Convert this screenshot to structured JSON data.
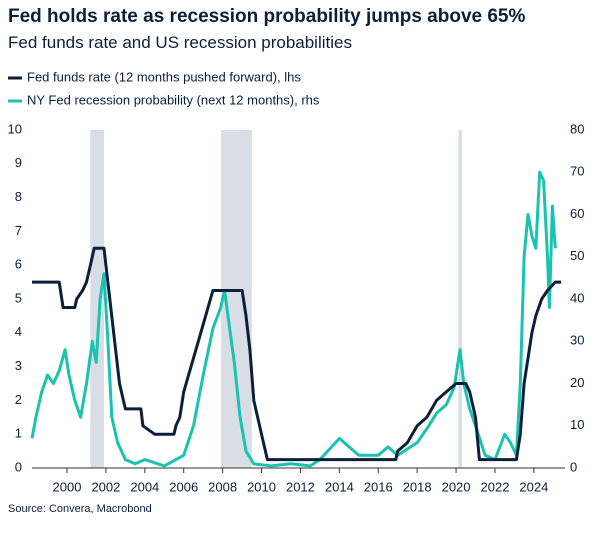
{
  "chart_data": {
    "type": "line",
    "title": "Fed holds rate as recession probability jumps above 65%",
    "subtitle": "Fed funds rate and US recession probabilities",
    "source": "Source: Convera, Macrobond",
    "xlim": [
      1998.2,
      2025.6
    ],
    "xticks": [
      2000,
      2002,
      2004,
      2006,
      2008,
      2010,
      2012,
      2014,
      2016,
      2018,
      2020,
      2022,
      2024
    ],
    "ylim": [
      0,
      10
    ],
    "yticks": [
      0,
      1,
      2,
      3,
      4,
      5,
      6,
      7,
      8,
      9,
      10
    ],
    "y2lim": [
      0,
      80
    ],
    "y2ticks": [
      0,
      10,
      20,
      30,
      40,
      50,
      60,
      70,
      80
    ],
    "recessions": [
      [
        2001.2,
        2001.9
      ],
      [
        2007.92,
        2009.5
      ],
      [
        2020.12,
        2020.3
      ]
    ],
    "series": [
      {
        "name": "Fed funds rate (12 months pushed forward), lhs",
        "color": "#0b1f3a",
        "x": [
          1998.2,
          1999.6,
          1999.8,
          2000.4,
          2000.5,
          2000.8,
          2001.0,
          2001.2,
          2001.4,
          2001.9,
          2002.0,
          2002.2,
          2002.5,
          2002.7,
          2002.9,
          2003.0,
          2003.8,
          2003.9,
          2004.5,
          2005.5,
          2005.6,
          2005.8,
          2006.0,
          2006.5,
          2007.0,
          2007.5,
          2009.0,
          2009.2,
          2009.4,
          2009.6,
          2010.0,
          2010.3,
          2016.9,
          2017.0,
          2017.5,
          2018.0,
          2018.5,
          2019.0,
          2019.5,
          2020.0,
          2020.5,
          2020.7,
          2020.9,
          2021.0,
          2021.2,
          2023.1,
          2023.3,
          2023.5,
          2023.7,
          2023.9,
          2024.1,
          2024.4,
          2024.7,
          2025.1,
          2025.4
        ],
        "values": [
          5.5,
          5.5,
          4.75,
          4.75,
          5.0,
          5.25,
          5.5,
          6.0,
          6.5,
          6.5,
          6.0,
          5.0,
          3.5,
          2.5,
          2.0,
          1.75,
          1.75,
          1.25,
          1.0,
          1.0,
          1.25,
          1.5,
          2.25,
          3.25,
          4.25,
          5.25,
          5.25,
          4.5,
          3.5,
          2.0,
          1.0,
          0.25,
          0.25,
          0.5,
          0.75,
          1.25,
          1.5,
          2.0,
          2.25,
          2.5,
          2.5,
          2.25,
          1.75,
          1.5,
          0.25,
          0.25,
          1.0,
          2.5,
          3.25,
          4.0,
          4.5,
          5.0,
          5.25,
          5.5,
          5.5
        ]
      },
      {
        "name": "NY Fed recession probability (next 12 months), rhs",
        "color": "#19c3b0",
        "axis": "y2",
        "x": [
          1998.2,
          1998.4,
          1998.7,
          1999.0,
          1999.3,
          1999.6,
          1999.9,
          2000.1,
          2000.4,
          2000.7,
          2001.0,
          2001.3,
          2001.5,
          2001.7,
          2001.9,
          2002.1,
          2002.3,
          2002.6,
          2003.0,
          2003.5,
          2004.0,
          2005.0,
          2006.0,
          2006.5,
          2007.0,
          2007.5,
          2007.9,
          2008.1,
          2008.3,
          2008.6,
          2008.9,
          2009.2,
          2009.6,
          2010.5,
          2011.5,
          2012.5,
          2013.0,
          2014.0,
          2014.5,
          2015.0,
          2016.0,
          2016.5,
          2017.0,
          2018.0,
          2018.6,
          2019.0,
          2019.5,
          2019.9,
          2020.2,
          2020.4,
          2020.7,
          2021.0,
          2021.5,
          2022.0,
          2022.5,
          2022.8,
          2023.1,
          2023.3,
          2023.5,
          2023.7,
          2023.9,
          2024.1,
          2024.3,
          2024.5,
          2024.7,
          2024.8,
          2024.95,
          2025.1
        ],
        "values": [
          7,
          12,
          18,
          22,
          20,
          23,
          28,
          22,
          16,
          12,
          20,
          30,
          25,
          40,
          46,
          30,
          12,
          6,
          2,
          1,
          2,
          0.5,
          3,
          10,
          22,
          33,
          38,
          42,
          35,
          25,
          12,
          4,
          1,
          0.5,
          1,
          0.5,
          2,
          7,
          5,
          3,
          3,
          5,
          3,
          6,
          10,
          13,
          15,
          19,
          28,
          20,
          14,
          10,
          3,
          2,
          8,
          6,
          3,
          20,
          50,
          60,
          55,
          52,
          70,
          68,
          50,
          38,
          62,
          52
        ]
      }
    ]
  }
}
